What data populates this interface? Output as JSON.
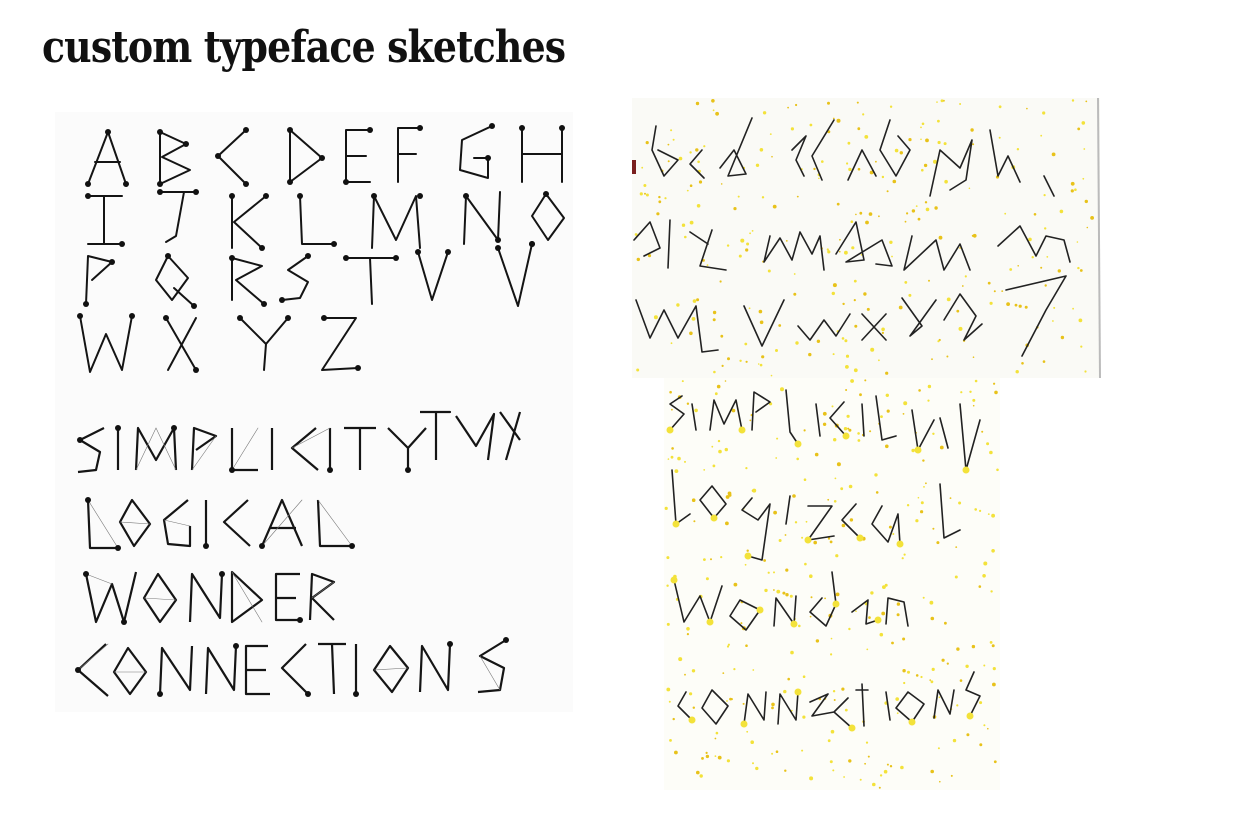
{
  "title": "custom typeface sketches",
  "left_sketch": {
    "alphabet_rows": [
      "ABCDEFGH",
      "IJKLMNO",
      "PQRSTUV",
      "WXYZ"
    ],
    "words": [
      "SIMPLICITY",
      "LOGICAL",
      "WONDER",
      "CONNECTIONS"
    ]
  },
  "right_sketch": {
    "alphabet_rows": [
      "bcdefgh",
      "rtlmnopq",
      "stuvwxyz"
    ],
    "words": [
      "simplicity",
      "logical",
      "wonder",
      "connections"
    ]
  },
  "colors": {
    "ink": "#141414",
    "dot_yellow": "#e8c21a",
    "paper": "#ffffff"
  }
}
